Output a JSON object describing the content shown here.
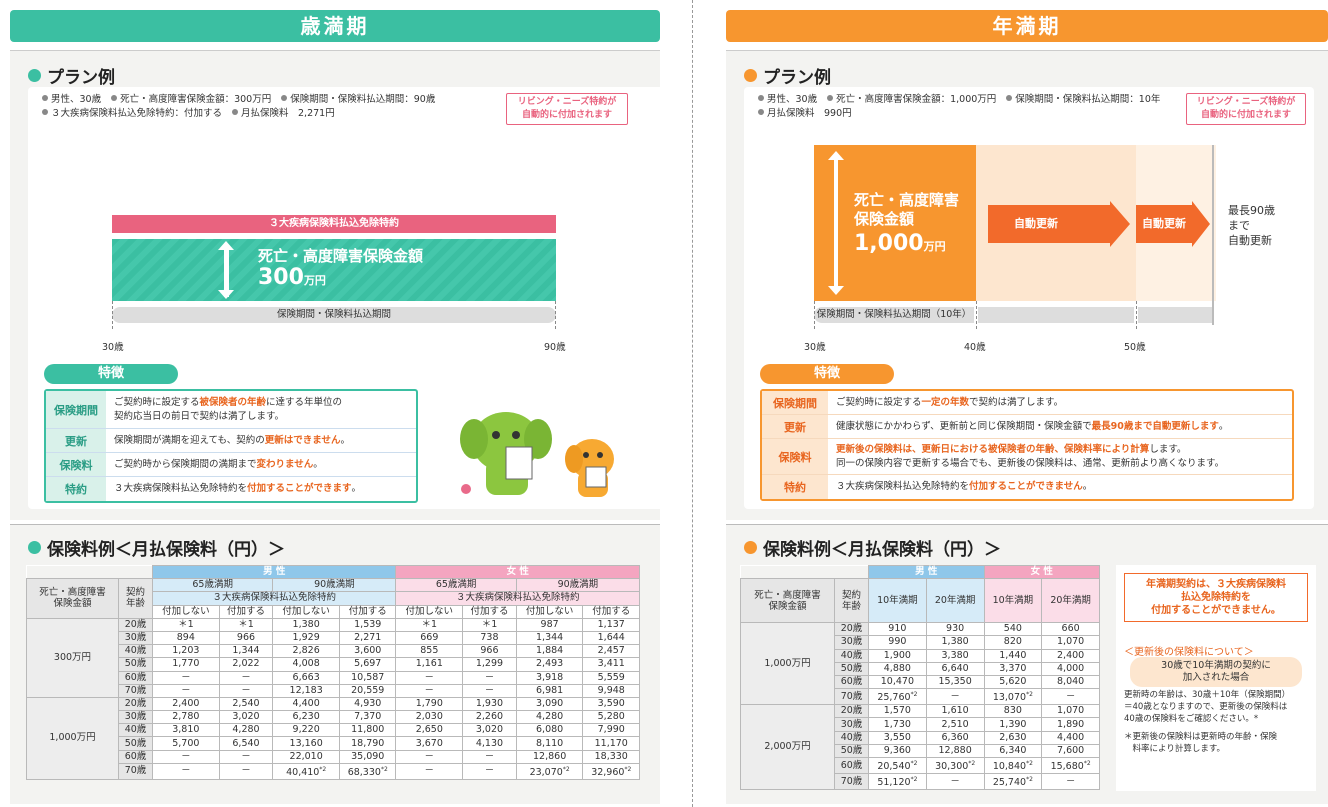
{
  "left": {
    "banner": "歳満期",
    "plan_title": "プラン例",
    "info_line1": [
      "男性、30歳",
      "死亡・高度障害保険金額：300万円",
      "保険期間・保険料払込期間：90歳"
    ],
    "info_line2": [
      "３大疾病保険料払込免除特約：付加する",
      "月払保険料　2,271円"
    ],
    "badge": "リビング・ニーズ特約が\n自動的に付加されます",
    "rider_bar": "３大疾病保険料払込免除特約",
    "coverage_title": "死亡・高度障害保険金額",
    "coverage_amount": "300",
    "coverage_unit": "万円",
    "period_label": "保険期間・保険料払込期間",
    "ages": [
      "30歳",
      "90歳"
    ],
    "features_title": "特徴",
    "features": [
      {
        "label": "保険期間",
        "text": [
          "ご契約時に設定する",
          "被保険者の年齢",
          "に達する年単位の\n契約応当日の前日で契約は満了します。"
        ]
      },
      {
        "label": "更新",
        "text": [
          "保険期間が満期を迎えても、契約の",
          "更新はできません",
          "。"
        ]
      },
      {
        "label": "保険料",
        "text": [
          "ご契約時から保険期間の満期まで",
          "変わりません",
          "。"
        ]
      },
      {
        "label": "特約",
        "text": [
          "３大疾病保険料払込免除特約を",
          "付加することができます",
          "。"
        ]
      }
    ],
    "prem_title": "保険料例＜月払保険料（円）＞",
    "table": {
      "h_male": "男 性",
      "h_female": "女 性",
      "h_amount": "死亡・高度障害\n保険金額",
      "h_age": "契約\n年齢",
      "h_65": "65歳満期",
      "h_90": "90歳満期",
      "h_rider": "３大疾病保険料払込免除特約",
      "h_no": "付加しない",
      "h_yes": "付加する",
      "groups": [
        {
          "amount": "300万円",
          "rows": [
            [
              "20歳",
              "＊1",
              "＊1",
              "1,380",
              "1,539",
              "＊1",
              "＊1",
              "987",
              "1,137"
            ],
            [
              "30歳",
              "894",
              "966",
              "1,929",
              "2,271",
              "669",
              "738",
              "1,344",
              "1,644"
            ],
            [
              "40歳",
              "1,203",
              "1,344",
              "2,826",
              "3,600",
              "855",
              "966",
              "1,884",
              "2,457"
            ],
            [
              "50歳",
              "1,770",
              "2,022",
              "4,008",
              "5,697",
              "1,161",
              "1,299",
              "2,493",
              "3,411"
            ],
            [
              "60歳",
              "－",
              "－",
              "6,663",
              "10,587",
              "－",
              "－",
              "3,918",
              "5,559"
            ],
            [
              "70歳",
              "－",
              "－",
              "12,183",
              "20,559",
              "－",
              "－",
              "6,981",
              "9,948"
            ]
          ]
        },
        {
          "amount": "1,000万円",
          "rows": [
            [
              "20歳",
              "2,400",
              "2,540",
              "4,400",
              "4,930",
              "1,790",
              "1,930",
              "3,090",
              "3,590"
            ],
            [
              "30歳",
              "2,780",
              "3,020",
              "6,230",
              "7,370",
              "2,030",
              "2,260",
              "4,280",
              "5,280"
            ],
            [
              "40歳",
              "3,810",
              "4,280",
              "9,220",
              "11,800",
              "2,650",
              "3,020",
              "6,080",
              "7,990"
            ],
            [
              "50歳",
              "5,700",
              "6,540",
              "13,160",
              "18,790",
              "3,670",
              "4,130",
              "8,110",
              "11,170"
            ],
            [
              "60歳",
              "－",
              "－",
              "22,010",
              "35,090",
              "－",
              "－",
              "12,860",
              "18,330"
            ],
            [
              "70歳",
              "－",
              "－",
              "40,410*2",
              "68,330*2",
              "－",
              "－",
              "23,070*2",
              "32,960*2"
            ]
          ]
        }
      ]
    }
  },
  "right": {
    "banner": "年満期",
    "plan_title": "プラン例",
    "info_line1": [
      "男性、30歳",
      "死亡・高度障害保険金額：1,000万円",
      "保険期間・保険料払込期間：10年"
    ],
    "info_line2": [
      "月払保険料　990円"
    ],
    "badge": "リビング・ニーズ特約が\n自動的に付加されます",
    "coverage_title": "死亡・高度障害\n保険金額",
    "coverage_amount": "1,000",
    "coverage_unit": "万円",
    "renew1": "自動更新",
    "renew2": "自動更新",
    "max_label": "最長90歳\nまで\n自動更新",
    "period_label": "保険期間・保険料払込期間（10年）",
    "ages": [
      "30歳",
      "40歳",
      "50歳"
    ],
    "features_title": "特徴",
    "features": [
      {
        "label": "保険期間",
        "text": [
          "ご契約時に設定する",
          "一定の年数",
          "で契約は満了します。"
        ]
      },
      {
        "label": "更新",
        "text": [
          "健康状態にかかわらず、更新前と同じ保険期間・保険金額で",
          "最長90歳まで自動更新します",
          "。"
        ]
      },
      {
        "label": "保険料",
        "text": [
          "",
          "更新後の保険料は、更新日における被保険者の年齢、保険料率により計算",
          "します。\n同一の保険内容で更新する場合でも、更新後の保険料は、通常、更新前より高くなります。"
        ]
      },
      {
        "label": "特約",
        "text": [
          "３大疾病保険料払込免除特約を",
          "付加することができません",
          "。"
        ]
      }
    ],
    "prem_title": "保険料例＜月払保険料（円）＞",
    "table": {
      "h_male": "男 性",
      "h_female": "女 性",
      "h_amount": "死亡・高度障害\n保険金額",
      "h_age": "契約\n年齢",
      "h_10": "10年満期",
      "h_20": "20年満期",
      "groups": [
        {
          "amount": "1,000万円",
          "rows": [
            [
              "20歳",
              "910",
              "930",
              "540",
              "660"
            ],
            [
              "30歳",
              "990",
              "1,380",
              "820",
              "1,070"
            ],
            [
              "40歳",
              "1,900",
              "3,380",
              "1,440",
              "2,400"
            ],
            [
              "50歳",
              "4,880",
              "6,640",
              "3,370",
              "4,000"
            ],
            [
              "60歳",
              "10,470",
              "15,350",
              "5,620",
              "8,040"
            ],
            [
              "70歳",
              "25,760*2",
              "－",
              "13,070*2",
              "－"
            ]
          ]
        },
        {
          "amount": "2,000万円",
          "rows": [
            [
              "20歳",
              "1,570",
              "1,610",
              "830",
              "1,070"
            ],
            [
              "30歳",
              "1,730",
              "2,510",
              "1,390",
              "1,890"
            ],
            [
              "40歳",
              "3,550",
              "6,360",
              "2,630",
              "4,400"
            ],
            [
              "50歳",
              "9,360",
              "12,880",
              "6,340",
              "7,600"
            ],
            [
              "60歳",
              "20,540*2",
              "30,300*2",
              "10,840*2",
              "15,680*2"
            ],
            [
              "70歳",
              "51,120*2",
              "－",
              "25,740*2",
              "－"
            ]
          ]
        }
      ]
    },
    "note_box": "年満期契約は、３大疾病保険料\n払込免除特約を\n付加することができません。",
    "renew_note_title": "＜更新後の保険料について＞",
    "renew_case": "30歳で10年満期の契約に\n加入された場合",
    "renew_text1": "更新時の年齢は、30歳＋10年（保険期間）\n＝40歳となりますので、更新後の保険料は\n40歳の保険料をご確認ください。*",
    "renew_text2": "＊更新後の保険料は更新時の年齢・保険\n　料率により計算します。"
  },
  "colors": {
    "teal": "#3bbfa2",
    "teal_light": "#d9f1ea",
    "orange": "#f7962f",
    "orange_light": "#fde6cf",
    "pink": "#e9637f",
    "male_blue": "#8fc7ea",
    "female_pink": "#f4a5c0"
  }
}
